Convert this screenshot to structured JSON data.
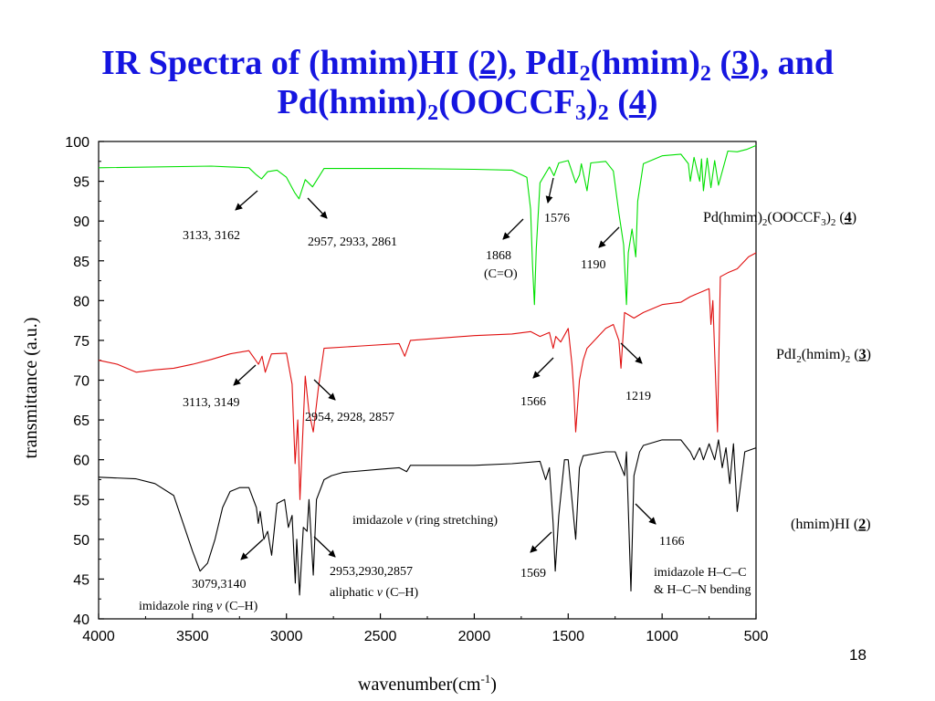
{
  "slide": {
    "title_line1": [
      "IR Spectra of (hmim)HI (",
      "2",
      "), PdI",
      "2",
      "(hmim)",
      "2",
      " (",
      "3",
      "), and"
    ],
    "title_line2": [
      "Pd(hmim)",
      "2",
      "(OOCCF",
      "3",
      ")",
      "2",
      " (",
      "4",
      ")"
    ],
    "page_number": "18"
  },
  "chart_data": {
    "type": "line",
    "xlabel": "wavenumber(cm",
    "xlabel_sup": "-1",
    "xlabel_end": ")",
    "ylabel": "transmittance (a.u.)",
    "xlim": [
      4000,
      500
    ],
    "ylim": [
      40,
      100
    ],
    "xticks": [
      "4000",
      "3500",
      "3000",
      "2500",
      "2000",
      "1500",
      "1000",
      "500"
    ],
    "yticks": [
      "40",
      "45",
      "50",
      "55",
      "60",
      "65",
      "70",
      "75",
      "80",
      "85",
      "90",
      "95",
      "100"
    ],
    "grid": false,
    "series": [
      {
        "name": "Pd(hmim)2(OOCCF3)2 (4)",
        "color": "#00e000",
        "label": [
          "Pd(hmim)",
          "2",
          "(OOCCF",
          "3",
          ")",
          "2",
          " (",
          "4",
          ")"
        ],
        "x": [
          4000,
          3400,
          3200,
          3160,
          3133,
          3100,
          3050,
          3000,
          2957,
          2933,
          2900,
          2861,
          2800,
          2600,
          2400,
          2000,
          1800,
          1720,
          1700,
          1690,
          1680,
          1670,
          1650,
          1600,
          1576,
          1550,
          1500,
          1460,
          1440,
          1430,
          1400,
          1380,
          1300,
          1260,
          1230,
          1205,
          1190,
          1180,
          1160,
          1140,
          1130,
          1100,
          1000,
          900,
          860,
          850,
          830,
          800,
          790,
          780,
          760,
          740,
          720,
          700,
          650,
          600,
          550,
          500
        ],
        "y": [
          96.7,
          96.9,
          96.7,
          95.8,
          95.3,
          96.2,
          96.4,
          95.5,
          93.6,
          92.8,
          95.2,
          94.3,
          96.6,
          96.6,
          96.6,
          96.5,
          96.4,
          95.5,
          91.5,
          84.5,
          79.5,
          86.5,
          94.8,
          96.8,
          95.7,
          97.3,
          97.6,
          94.8,
          95.8,
          97.2,
          93.8,
          97.3,
          97.5,
          96.3,
          91.0,
          87.0,
          79.5,
          86.0,
          89.0,
          85.5,
          92.5,
          97.2,
          98.2,
          98.4,
          97.2,
          95.0,
          98.0,
          95.0,
          97.8,
          93.8,
          97.9,
          94.2,
          97.6,
          94.5,
          98.8,
          98.7,
          99.0,
          99.5
        ]
      },
      {
        "name": "PdI2(hmim)2 (3)",
        "color": "#e01010",
        "label": [
          "PdI",
          "2",
          "(hmim)",
          "2",
          " (",
          "3",
          ")"
        ],
        "x": [
          4000,
          3900,
          3800,
          3700,
          3600,
          3500,
          3400,
          3300,
          3200,
          3149,
          3130,
          3113,
          3080,
          3000,
          2970,
          2954,
          2940,
          2928,
          2900,
          2880,
          2857,
          2830,
          2800,
          2600,
          2400,
          2370,
          2340,
          2000,
          1800,
          1700,
          1650,
          1600,
          1580,
          1566,
          1540,
          1500,
          1480,
          1470,
          1460,
          1440,
          1420,
          1400,
          1300,
          1260,
          1230,
          1219,
          1200,
          1150,
          1100,
          1000,
          900,
          850,
          800,
          750,
          740,
          730,
          720,
          705,
          690,
          650,
          600,
          560,
          540,
          500
        ],
        "y": [
          72.5,
          72.0,
          71.0,
          71.3,
          71.5,
          72.0,
          72.6,
          73.3,
          73.7,
          72.0,
          73.0,
          71.0,
          73.3,
          73.4,
          69.5,
          59.5,
          65.0,
          55.0,
          70.5,
          66.0,
          63.5,
          69.0,
          74.0,
          74.3,
          74.6,
          73.0,
          75.0,
          75.6,
          75.8,
          76.1,
          75.5,
          76.0,
          74.0,
          75.5,
          74.8,
          76.5,
          72.0,
          68.5,
          63.5,
          70.0,
          72.5,
          74.0,
          76.5,
          77.0,
          75.0,
          71.5,
          78.5,
          77.8,
          78.5,
          79.5,
          79.8,
          80.5,
          81.0,
          81.5,
          77.0,
          80.0,
          73.5,
          63.5,
          83.0,
          83.5,
          84.0,
          85.0,
          85.5,
          86.0
        ]
      },
      {
        "name": "(hmim)HI (2)",
        "color": "#000000",
        "label": [
          "(hmim)HI (",
          "2",
          ")"
        ],
        "x": [
          4000,
          3800,
          3700,
          3600,
          3550,
          3500,
          3460,
          3420,
          3380,
          3340,
          3300,
          3250,
          3200,
          3160,
          3150,
          3140,
          3120,
          3100,
          3079,
          3050,
          3010,
          2990,
          2970,
          2953,
          2945,
          2930,
          2910,
          2890,
          2880,
          2857,
          2840,
          2800,
          2760,
          2700,
          2500,
          2400,
          2360,
          2340,
          2000,
          1800,
          1650,
          1620,
          1600,
          1580,
          1569,
          1550,
          1520,
          1500,
          1480,
          1460,
          1440,
          1420,
          1300,
          1250,
          1200,
          1190,
          1166,
          1150,
          1120,
          1100,
          1000,
          900,
          850,
          830,
          800,
          780,
          750,
          720,
          700,
          680,
          660,
          640,
          620,
          600,
          560,
          500
        ],
        "y": [
          57.8,
          57.6,
          57.0,
          55.5,
          52.0,
          48.5,
          46.0,
          47.0,
          50.0,
          54.0,
          56.0,
          56.5,
          56.5,
          54.0,
          52.0,
          53.5,
          50.0,
          51.0,
          48.0,
          54.5,
          55.0,
          51.5,
          53.0,
          44.5,
          50.0,
          43.0,
          51.5,
          51.0,
          55.0,
          45.5,
          55.0,
          57.5,
          58.0,
          58.4,
          58.8,
          59.0,
          58.5,
          59.3,
          59.3,
          59.5,
          59.8,
          57.5,
          59.0,
          52.0,
          46.0,
          53.0,
          60.0,
          60.0,
          55.0,
          50.0,
          59.0,
          60.5,
          61.0,
          61.0,
          58.0,
          61.0,
          43.5,
          58.0,
          61.0,
          61.8,
          62.5,
          62.5,
          61.0,
          60.0,
          61.5,
          60.0,
          62.0,
          60.0,
          62.5,
          59.0,
          61.5,
          57.0,
          62.0,
          53.5,
          61.0,
          61.5
        ]
      }
    ],
    "annotations": [
      {
        "text": "3133, 3162"
      },
      {
        "text": "2957, 2933, 2861"
      },
      {
        "text": "1868"
      },
      {
        "text": "(C=O)"
      },
      {
        "text": "1576"
      },
      {
        "text": "1190"
      },
      {
        "text": "3113, 3149"
      },
      {
        "text": "2954, 2928, 2857"
      },
      {
        "text": "1566"
      },
      {
        "text": "1219"
      },
      {
        "text": "imidazole ",
        "italic": "v",
        "after": " (ring stretching)"
      },
      {
        "text": "1166"
      },
      {
        "text": "3079,3140"
      },
      {
        "text": "imidazole ring ",
        "italic": "v",
        "after": " (C–H)"
      },
      {
        "text": "2953,2930,2857"
      },
      {
        "text": "aliphatic ",
        "italic": "v",
        "after": " (C–H)"
      },
      {
        "text": "1569"
      },
      {
        "text": "imidazole H–C–C"
      },
      {
        "text": "& H–C–N bending"
      }
    ]
  }
}
